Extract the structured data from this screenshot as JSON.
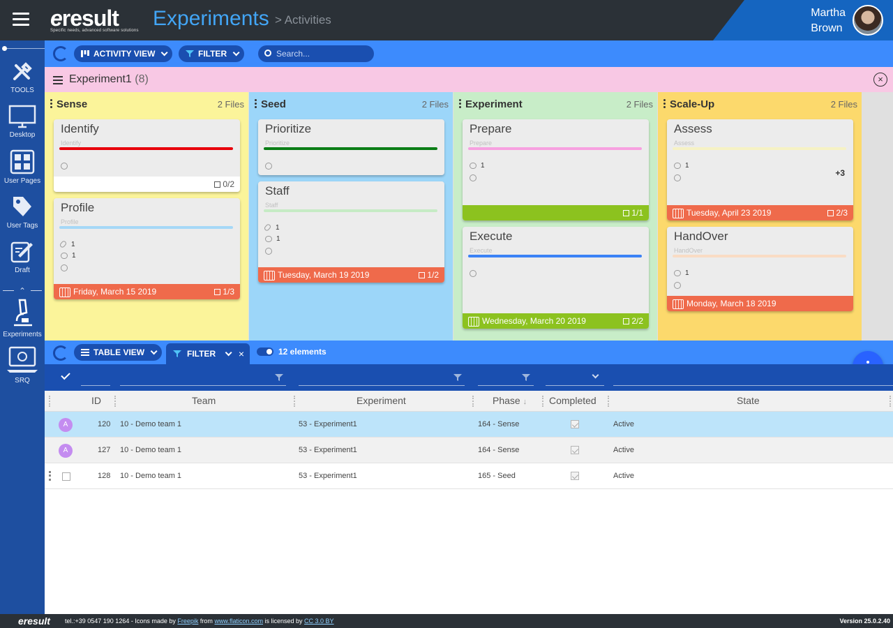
{
  "header": {
    "logo_text": "result",
    "logo_tagline": "Specific needs, advanced software solutions",
    "title": "Experiments",
    "breadcrumb": "> Activities",
    "user_first": "Martha",
    "user_last": "Brown"
  },
  "sidebar": {
    "items": [
      {
        "label": "TOOLS",
        "icon": "tools-icon"
      },
      {
        "label": "Desktop",
        "icon": "desktop-icon"
      },
      {
        "label": "User Pages",
        "icon": "grid-icon"
      },
      {
        "label": "User Tags",
        "icon": "tag-icon"
      },
      {
        "label": "Draft",
        "icon": "edit-icon"
      },
      {
        "label": "Experiments",
        "icon": "microscope-icon"
      },
      {
        "label": "SRQ",
        "icon": "laptop-icon"
      }
    ]
  },
  "toolbar": {
    "view_label": "ACTIVITY VIEW",
    "filter_label": "FILTER",
    "search_placeholder": "Search..."
  },
  "experiment": {
    "name": "Experiment1",
    "count": "(8)"
  },
  "board": {
    "columns": [
      {
        "name": "Sense",
        "files": "2 Files",
        "color": "#fbf49a",
        "cards": [
          {
            "title": "Identify",
            "sub": "Identify",
            "bar": "#e8000b",
            "footer_checks": "0/2"
          },
          {
            "title": "Profile",
            "sub": "Profile",
            "bar": "#a5d8f7",
            "attachments": "1",
            "comments": "1",
            "footer_date": "Friday, March 15 2019",
            "footer_checks": "1/3"
          }
        ]
      },
      {
        "name": "Seed",
        "files": "2 Files",
        "color": "#9cd6f9",
        "cards": [
          {
            "title": "Prioritize",
            "sub": "Prioritize",
            "bar": "#0a7d16"
          },
          {
            "title": "Staff",
            "sub": "Staff",
            "bar": "#c6ebc5",
            "attachments": "1",
            "comments": "1",
            "footer_date": "Tuesday, March 19 2019",
            "footer_checks": "1/2"
          }
        ]
      },
      {
        "name": "Experiment",
        "files": "2 Files",
        "color": "#c8edc8",
        "cards": [
          {
            "title": "Prepare",
            "sub": "Prepare",
            "bar": "#f7a1e0",
            "comments": "1",
            "footer_checks": "1/1"
          },
          {
            "title": "Execute",
            "sub": "Execute",
            "bar": "#3b82f6",
            "footer_date": "Wednesday, March 20 2019",
            "footer_checks": "2/2"
          }
        ]
      },
      {
        "name": "Scale-Up",
        "files": "2 Files",
        "color": "#fcd96c",
        "cards": [
          {
            "title": "Assess",
            "sub": "Assess",
            "bar": "#f6f2c4",
            "comments": "1",
            "extra": "+3",
            "footer_date": "Tuesday, April 23 2019",
            "footer_checks": "2/3"
          },
          {
            "title": "HandOver",
            "sub": "HandOver",
            "bar": "#f9dcc4",
            "comments": "1",
            "footer_date": "Monday, March 18 2019"
          }
        ]
      }
    ]
  },
  "table_toolbar": {
    "view_label": "TABLE VIEW",
    "filter_label": "FILTER",
    "close": "×",
    "elements": "12 elements"
  },
  "table": {
    "columns": [
      "ID",
      "Team",
      "Experiment",
      "Phase",
      "Completed",
      "State"
    ],
    "rows": [
      {
        "badge": "A",
        "id": "120",
        "team": "10 - Demo team 1",
        "experiment": "53 - Experiment1",
        "phase": "164 - Sense",
        "state": "Active"
      },
      {
        "badge": "A",
        "id": "127",
        "team": "10 - Demo team 1",
        "experiment": "53 - Experiment1",
        "phase": "164 - Sense",
        "state": "Active"
      },
      {
        "badge": "",
        "id": "128",
        "team": "10 - Demo team 1",
        "experiment": "53 - Experiment1",
        "phase": "165 - Seed",
        "state": "Active"
      }
    ]
  },
  "footer": {
    "logo": "result",
    "info_prefix": "tel.:+39 0547 190 1264 - Icons made by",
    "link1": "Freepik",
    "from": "from",
    "link2": "www.flaticon.com",
    "licensed": "is licensed by",
    "link3": "CC 3.0 BY",
    "version": "Version 25.0.2.40"
  }
}
